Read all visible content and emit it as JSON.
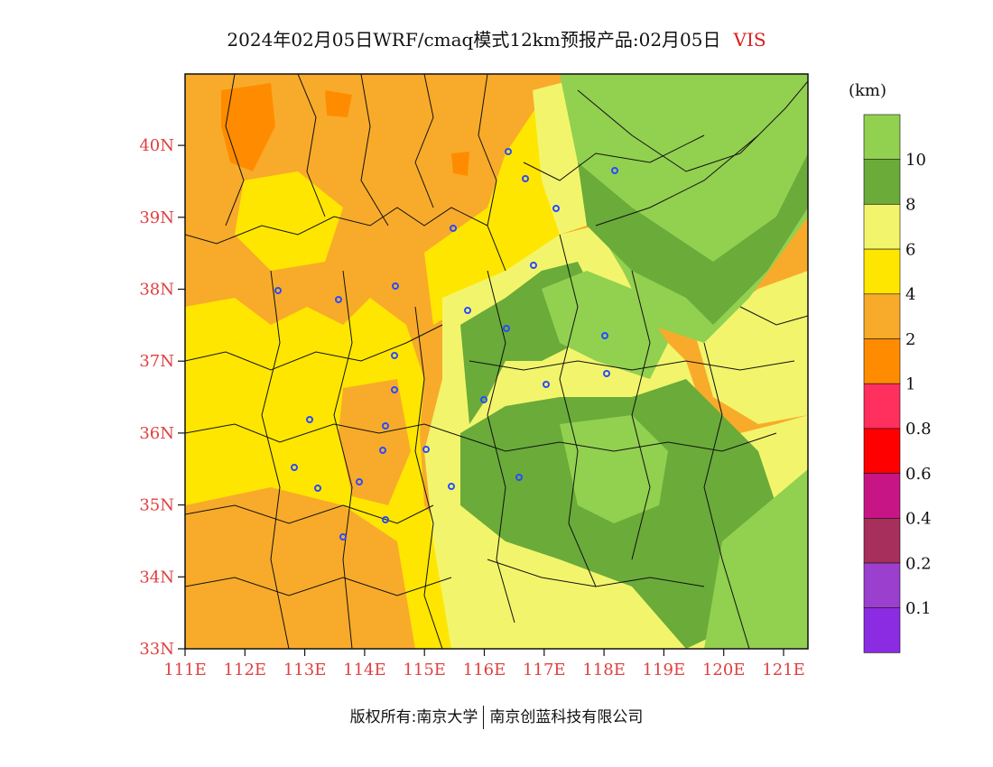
{
  "header": {
    "title": "2024年02月05日WRF/cmaq模式12km预报产品:02月05日",
    "variable": "VIS"
  },
  "legend": {
    "unit": "(km)",
    "labels": [
      "10",
      "8",
      "6",
      "4",
      "2",
      "1",
      "0.8",
      "0.6",
      "0.4",
      "0.2",
      "0.1"
    ],
    "colors": [
      "#92d050",
      "#6aab3a",
      "#f2f56b",
      "#ffe600",
      "#f8ab2a",
      "#ff8c00",
      "#ff2f5e",
      "#ff0000",
      "#c71585",
      "#a62f5c",
      "#9b3fcf",
      "#8b2be2"
    ]
  },
  "axes": {
    "x_ticks": [
      "111E",
      "112E",
      "113E",
      "114E",
      "115E",
      "116E",
      "117E",
      "118E",
      "119E",
      "120E",
      "121E"
    ],
    "y_ticks": [
      "33N",
      "34N",
      "35N",
      "36N",
      "37N",
      "38N",
      "39N",
      "40N"
    ]
  },
  "footer": {
    "left": "版权所有:南京大学",
    "right": "南京创蓝科技有限公司"
  }
}
